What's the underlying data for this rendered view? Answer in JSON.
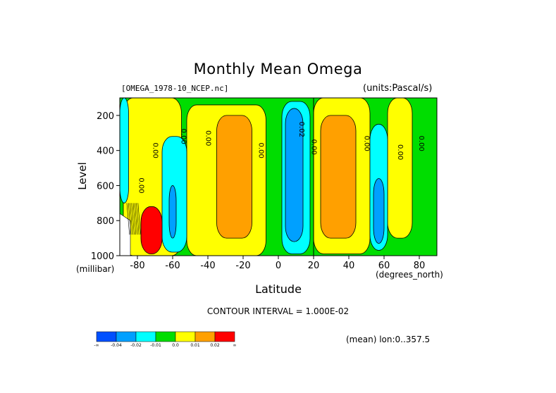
{
  "chart_data": {
    "type": "heatmap",
    "title": "Monthly Mean Omega",
    "file_label": "[OMEGA_1978-10_NCEP.nc]",
    "units_label": "(units:Pascal/s)",
    "xlabel": "Latitude",
    "ylabel": "Level",
    "x_unit_label": "(degrees_north)",
    "y_unit_label": "(millibar)",
    "xlim": [
      -90,
      90
    ],
    "ylim": [
      1000,
      100
    ],
    "x_ticks": [
      "-80",
      "-60",
      "-40",
      "-20",
      "0",
      "20",
      "40",
      "60",
      "80"
    ],
    "x_tick_values": [
      -80,
      -60,
      -40,
      -20,
      0,
      20,
      40,
      60,
      80
    ],
    "y_ticks": [
      "200",
      "400",
      "600",
      "800",
      "1000"
    ],
    "y_tick_values": [
      200,
      400,
      600,
      800,
      1000
    ],
    "contour_interval_label": "CONTOUR INTERVAL = 1.000E-02",
    "mean_label": "(mean) lon:0..357.5",
    "contour_labels": [
      "0.00",
      "0.00",
      "0.00",
      "0.00",
      "0.00",
      "0.02",
      "0.00",
      "0.00",
      "0.00",
      "0.00"
    ],
    "colorbar": {
      "colors": [
        "#0050ff",
        "#00a0ff",
        "#00ffff",
        "#00dd00",
        "#ffff00",
        "#ffa000",
        "#ff0000"
      ],
      "labels": [
        "-∞",
        "-0.04",
        "-0.02",
        "-0.01",
        "0.0",
        "0.01",
        "0.02",
        "∞"
      ]
    },
    "background_color": "#00dd00",
    "regions": [
      {
        "label": "yellow",
        "color": "#ffff00",
        "lat": [
          -88,
          -55
        ],
        "lev": [
          100,
          1000
        ]
      },
      {
        "label": "yellow",
        "color": "#ffff00",
        "lat": [
          -52,
          -7
        ],
        "lev": [
          140,
          1000
        ]
      },
      {
        "label": "orange",
        "color": "#ffa000",
        "lat": [
          -35,
          -15
        ],
        "lev": [
          200,
          900
        ]
      },
      {
        "label": "yellow",
        "color": "#ffff00",
        "lat": [
          20,
          52
        ],
        "lev": [
          100,
          990
        ]
      },
      {
        "label": "orange",
        "color": "#ffa000",
        "lat": [
          24,
          44
        ],
        "lev": [
          200,
          900
        ]
      },
      {
        "label": "yellow",
        "color": "#ffff00",
        "lat": [
          62,
          76
        ],
        "lev": [
          100,
          900
        ]
      },
      {
        "label": "light-blue",
        "color": "#00ffff",
        "lat": [
          2,
          18
        ],
        "lev": [
          120,
          990
        ]
      },
      {
        "label": "blue",
        "color": "#00a0ff",
        "lat": [
          4,
          14
        ],
        "lev": [
          160,
          920
        ]
      },
      {
        "label": "light-blue",
        "color": "#00ffff",
        "lat": [
          -66,
          -52
        ],
        "lev": [
          320,
          980
        ]
      },
      {
        "label": "blue",
        "color": "#00a0ff",
        "lat": [
          -62,
          -58
        ],
        "lev": [
          600,
          900
        ]
      },
      {
        "label": "light-blue",
        "color": "#00ffff",
        "lat": [
          52,
          62
        ],
        "lev": [
          250,
          970
        ]
      },
      {
        "label": "blue",
        "color": "#00a0ff",
        "lat": [
          54,
          60
        ],
        "lev": [
          560,
          930
        ]
      },
      {
        "label": "light-blue",
        "color": "#00ffff",
        "lat": [
          -90,
          -85
        ],
        "lev": [
          100,
          700
        ]
      },
      {
        "label": "red",
        "color": "#ff0000",
        "lat": [
          -78,
          -66
        ],
        "lev": [
          720,
          990
        ]
      }
    ]
  }
}
